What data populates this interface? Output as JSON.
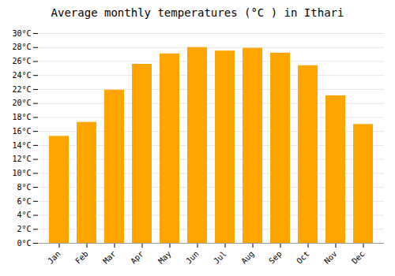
{
  "chart_data": {
    "type": "bar",
    "title": "Average monthly temperatures (°C ) in Ithari",
    "categories": [
      "Jan",
      "Feb",
      "Mar",
      "Apr",
      "May",
      "Jun",
      "Jul",
      "Aug",
      "Sep",
      "Oct",
      "Nov",
      "Dec"
    ],
    "values": [
      15.3,
      17.3,
      21.9,
      25.6,
      27.1,
      28.0,
      27.5,
      27.9,
      27.2,
      25.4,
      21.1,
      17.0
    ],
    "color": "#FFA500",
    "ylim": [
      0,
      30
    ],
    "yticks": [
      {
        "value": 0,
        "label": "0°C"
      },
      {
        "value": 2,
        "label": "2°C"
      },
      {
        "value": 4,
        "label": "4°C"
      },
      {
        "value": 6,
        "label": "6°C"
      },
      {
        "value": 8,
        "label": "8°C"
      },
      {
        "value": 10,
        "label": "10°C"
      },
      {
        "value": 12,
        "label": "12°C"
      },
      {
        "value": 14,
        "label": "14°C"
      },
      {
        "value": 16,
        "label": "16°C"
      },
      {
        "value": 18,
        "label": "18°C"
      },
      {
        "value": 20,
        "label": "20°C"
      },
      {
        "value": 22,
        "label": "22°C"
      },
      {
        "value": 24,
        "label": "24°C"
      },
      {
        "value": 26,
        "label": "26°C"
      },
      {
        "value": 28,
        "label": "28°C"
      },
      {
        "value": 30,
        "label": "30°C"
      }
    ],
    "grid": true
  }
}
